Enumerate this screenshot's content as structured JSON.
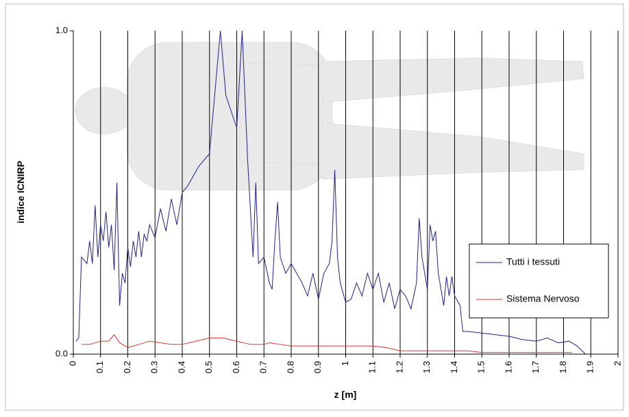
{
  "chart_data": {
    "type": "line",
    "x_label": "z [m]",
    "y_label": "indice ICNIRP",
    "xlim": [
      0,
      2
    ],
    "xticks": [
      0,
      0.1,
      0.2,
      0.3,
      0.4,
      0.5,
      0.6,
      0.7,
      0.8,
      0.9,
      1,
      1.1,
      1.2,
      1.3,
      1.4,
      1.5,
      1.6,
      1.7,
      1.8,
      1.9,
      2
    ],
    "ylim": [
      0,
      1
    ],
    "yticks": [
      {
        "value": 0,
        "label": "0.0"
      },
      {
        "value": 1,
        "label": "1.0"
      }
    ],
    "grid": true,
    "legend": "lower right",
    "series": [
      {
        "name": "Tutti i tessuti",
        "color": "#1f1f8a",
        "x": [
          0.01,
          0.02,
          0.03,
          0.05,
          0.06,
          0.07,
          0.08,
          0.09,
          0.1,
          0.11,
          0.12,
          0.13,
          0.14,
          0.15,
          0.16,
          0.17,
          0.18,
          0.19,
          0.2,
          0.21,
          0.22,
          0.23,
          0.24,
          0.25,
          0.26,
          0.27,
          0.28,
          0.3,
          0.32,
          0.34,
          0.36,
          0.38,
          0.4,
          0.42,
          0.44,
          0.46,
          0.5,
          0.54,
          0.56,
          0.6,
          0.62,
          0.64,
          0.66,
          0.67,
          0.68,
          0.7,
          0.72,
          0.73,
          0.74,
          0.75,
          0.76,
          0.78,
          0.8,
          0.82,
          0.84,
          0.86,
          0.88,
          0.9,
          0.92,
          0.94,
          0.95,
          0.96,
          0.97,
          0.98,
          1,
          1.02,
          1.04,
          1.06,
          1.08,
          1.1,
          1.12,
          1.14,
          1.16,
          1.18,
          1.2,
          1.22,
          1.24,
          1.26,
          1.27,
          1.28,
          1.3,
          1.31,
          1.32,
          1.33,
          1.34,
          1.36,
          1.37,
          1.38,
          1.39,
          1.4,
          1.42,
          1.43,
          1.45,
          1.5,
          1.55,
          1.6,
          1.65,
          1.7,
          1.74,
          1.78,
          1.82,
          1.85,
          1.88
        ],
        "values": [
          0.04,
          0.05,
          0.3,
          0.28,
          0.35,
          0.28,
          0.46,
          0.3,
          0.4,
          0.35,
          0.44,
          0.33,
          0.4,
          0.26,
          0.53,
          0.15,
          0.25,
          0.22,
          0.33,
          0.27,
          0.35,
          0.3,
          0.38,
          0.3,
          0.37,
          0.35,
          0.4,
          0.36,
          0.45,
          0.38,
          0.48,
          0.4,
          0.5,
          0.52,
          0.55,
          0.58,
          0.62,
          1,
          0.8,
          0.7,
          1,
          0.6,
          0.3,
          0.53,
          0.28,
          0.3,
          0.22,
          0.2,
          0.35,
          0.47,
          0.3,
          0.25,
          0.28,
          0.25,
          0.22,
          0.18,
          0.25,
          0.17,
          0.25,
          0.28,
          0.35,
          0.57,
          0.3,
          0.22,
          0.16,
          0.17,
          0.22,
          0.18,
          0.25,
          0.2,
          0.25,
          0.16,
          0.22,
          0.14,
          0.2,
          0.18,
          0.14,
          0.22,
          0.42,
          0.3,
          0.2,
          0.4,
          0.35,
          0.38,
          0.25,
          0.15,
          0.24,
          0.18,
          0.24,
          0.18,
          0.15,
          0.07,
          0.07,
          0.065,
          0.06,
          0.055,
          0.045,
          0.04,
          0.05,
          0.035,
          0.04,
          0.025,
          0
        ]
      },
      {
        "name": "Sistema Nervoso",
        "color": "#e03030",
        "x": [
          0.03,
          0.06,
          0.1,
          0.13,
          0.15,
          0.17,
          0.2,
          0.24,
          0.28,
          0.32,
          0.36,
          0.4,
          0.45,
          0.5,
          0.55,
          0.6,
          0.65,
          0.7,
          0.72,
          0.76,
          0.8,
          0.9,
          1,
          1.1,
          1.15,
          1.2,
          1.3,
          1.4,
          1.45,
          1.5,
          1.6,
          1.7,
          1.83
        ],
        "values": [
          0.03,
          0.03,
          0.04,
          0.04,
          0.06,
          0.035,
          0.02,
          0.03,
          0.04,
          0.035,
          0.03,
          0.03,
          0.04,
          0.05,
          0.05,
          0.04,
          0.03,
          0.03,
          0.035,
          0.03,
          0.025,
          0.025,
          0.025,
          0.025,
          0.02,
          0.01,
          0.01,
          0.01,
          0.01,
          0.005,
          0.005,
          0.005,
          0.005
        ]
      }
    ]
  }
}
